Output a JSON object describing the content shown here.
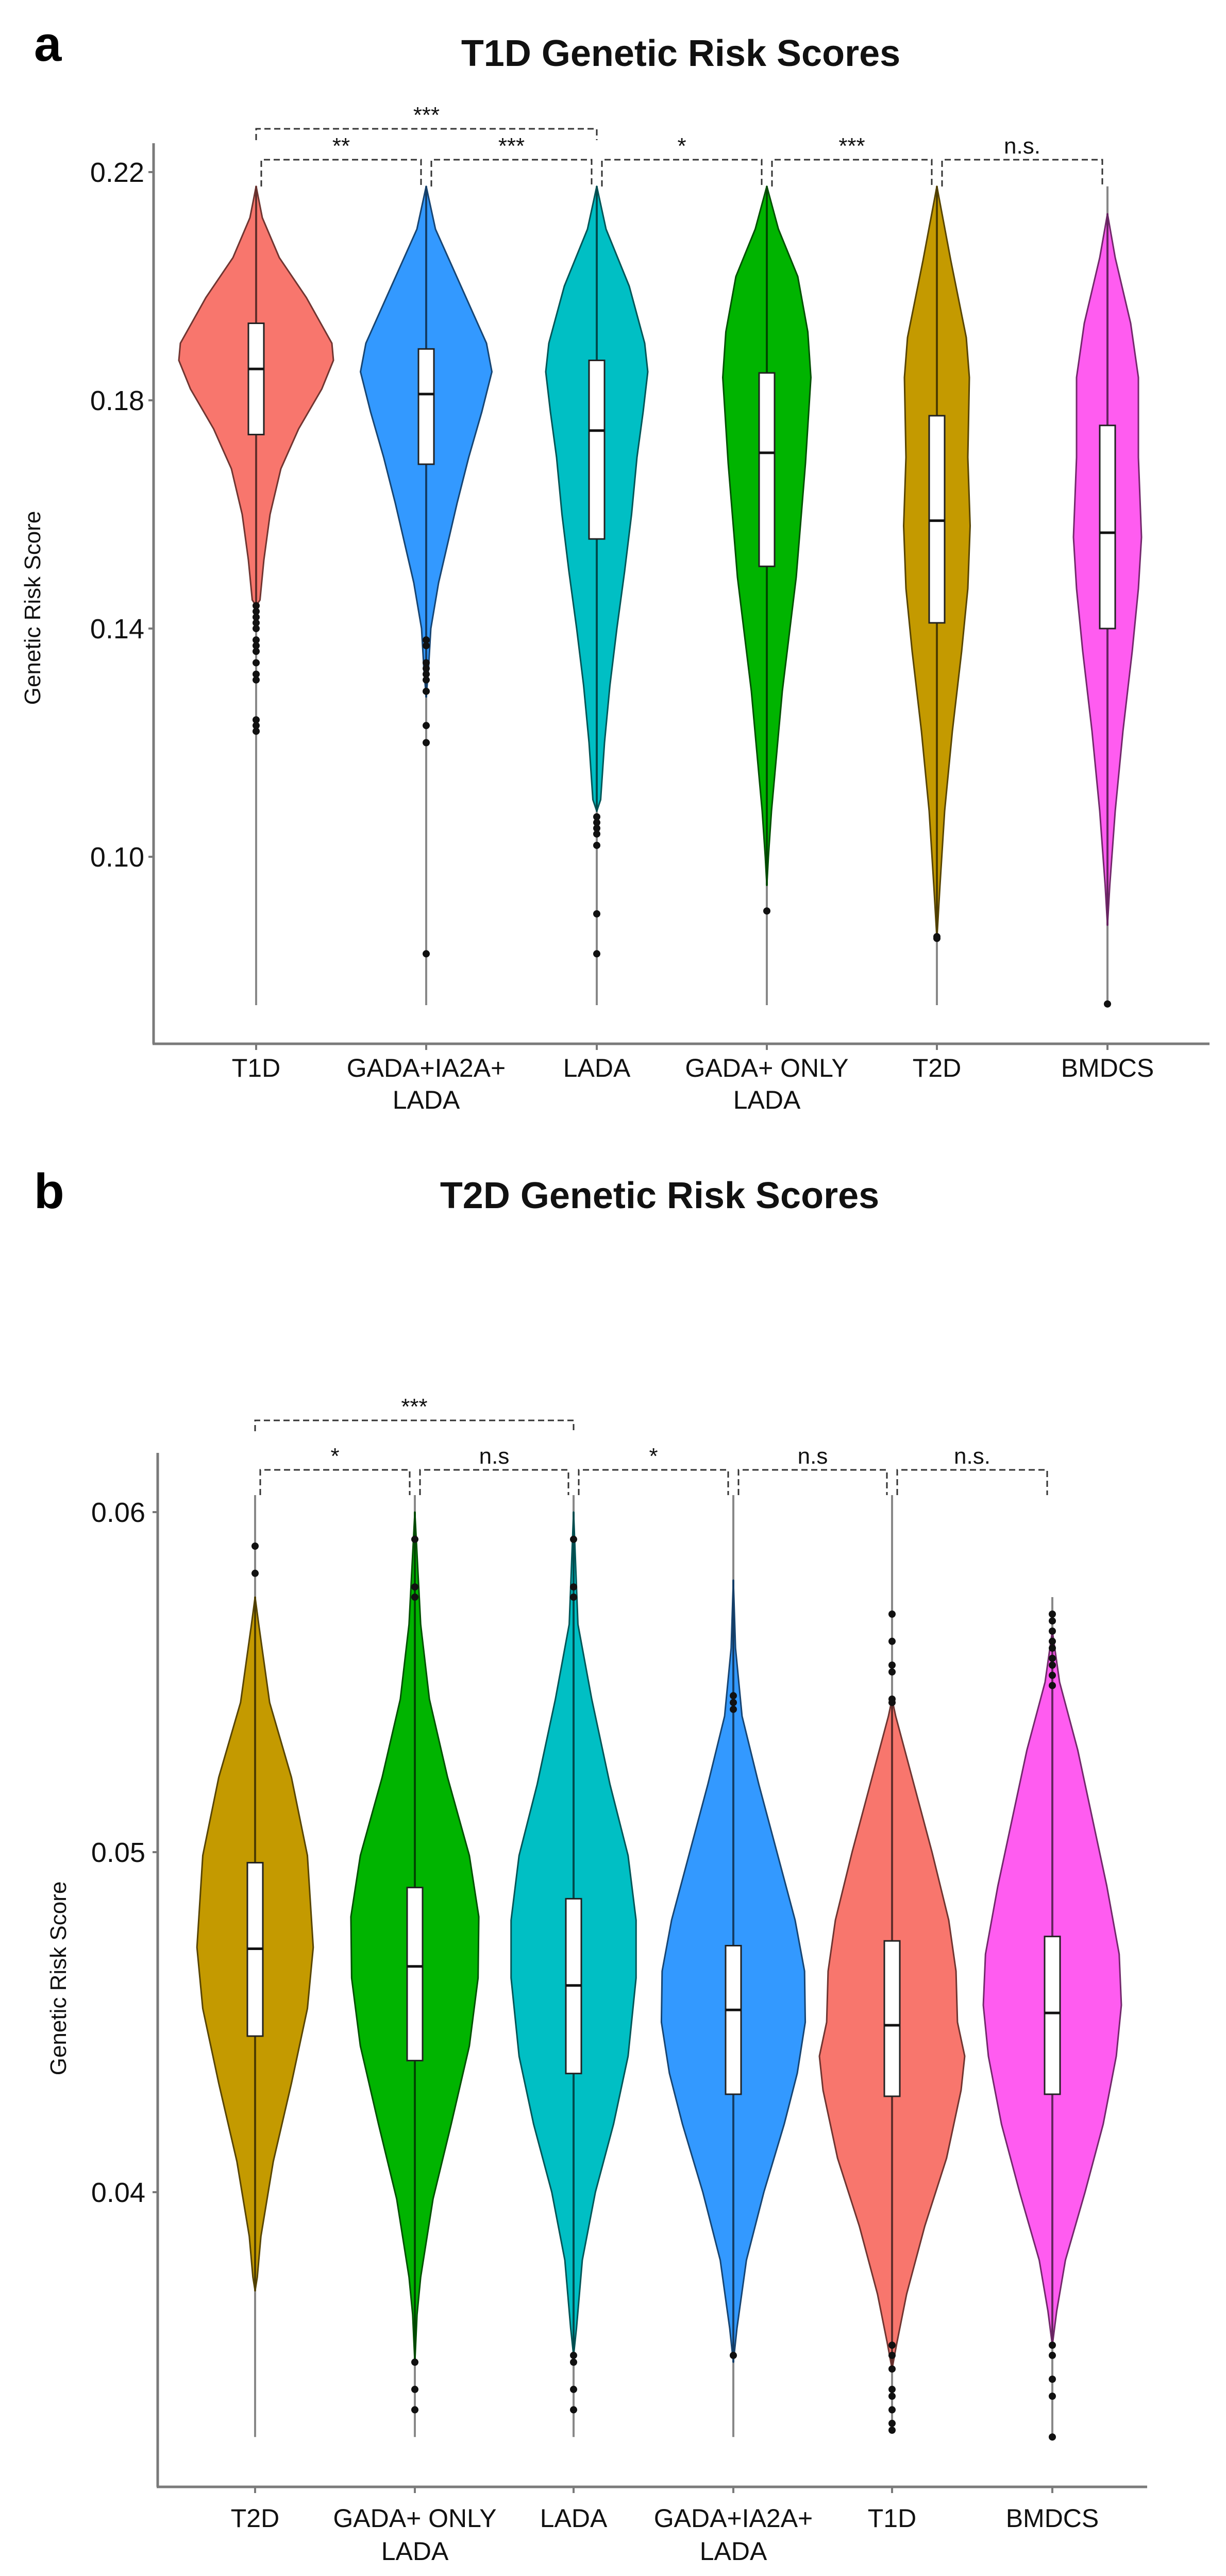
{
  "chart_data": [
    {
      "type": "violin",
      "panel": "a",
      "title": "T1D Genetic Risk Scores",
      "xlabel": "",
      "ylabel": "Genetic Risk Score",
      "ylim": [
        0.07,
        0.227
      ],
      "yticks": [
        0.1,
        0.14,
        0.18,
        0.22
      ],
      "ytick_labels": [
        "0.10",
        "0.14",
        "0.18",
        "0.22"
      ],
      "grid": false,
      "groups": [
        {
          "label": [
            "T1D"
          ],
          "color": "#F8766D",
          "q1": 0.174,
          "median": 0.1855,
          "q3": 0.1935,
          "whisker_low": 0.074,
          "whisker_high": 0.2175,
          "density": [
            [
              0.2175,
              0
            ],
            [
              0.212,
              0.08
            ],
            [
              0.205,
              0.3
            ],
            [
              0.198,
              0.65
            ],
            [
              0.19,
              0.98
            ],
            [
              0.187,
              1.0
            ],
            [
              0.182,
              0.85
            ],
            [
              0.175,
              0.55
            ],
            [
              0.168,
              0.32
            ],
            [
              0.16,
              0.18
            ],
            [
              0.152,
              0.1
            ],
            [
              0.145,
              0.05
            ],
            [
              0.144,
              0
            ]
          ],
          "outliers": [
            0.144,
            0.143,
            0.142,
            0.141,
            0.14,
            0.138,
            0.137,
            0.136,
            0.134,
            0.132,
            0.131,
            0.124,
            0.123,
            0.122
          ]
        },
        {
          "label": [
            "GADA+IA2A+",
            "LADA"
          ],
          "color": "#3399FF",
          "q1": 0.1688,
          "median": 0.1811,
          "q3": 0.189,
          "whisker_low": 0.074,
          "whisker_high": 0.2175,
          "density": [
            [
              0.2175,
              0
            ],
            [
              0.21,
              0.12
            ],
            [
              0.2,
              0.45
            ],
            [
              0.19,
              0.78
            ],
            [
              0.185,
              0.85
            ],
            [
              0.178,
              0.72
            ],
            [
              0.17,
              0.55
            ],
            [
              0.162,
              0.4
            ],
            [
              0.155,
              0.28
            ],
            [
              0.148,
              0.16
            ],
            [
              0.14,
              0.06
            ],
            [
              0.133,
              0.03
            ],
            [
              0.128,
              0
            ]
          ],
          "outliers": [
            0.138,
            0.137,
            0.134,
            0.133,
            0.132,
            0.131,
            0.129,
            0.123,
            0.12,
            0.083
          ]
        },
        {
          "label": [
            "LADA"
          ],
          "color": "#00BFC4",
          "q1": 0.1557,
          "median": 0.1747,
          "q3": 0.187,
          "whisker_low": 0.074,
          "whisker_high": 0.2175,
          "density": [
            [
              0.2175,
              0
            ],
            [
              0.21,
              0.12
            ],
            [
              0.2,
              0.42
            ],
            [
              0.19,
              0.62
            ],
            [
              0.185,
              0.66
            ],
            [
              0.178,
              0.6
            ],
            [
              0.17,
              0.52
            ],
            [
              0.16,
              0.45
            ],
            [
              0.15,
              0.36
            ],
            [
              0.14,
              0.26
            ],
            [
              0.13,
              0.17
            ],
            [
              0.12,
              0.1
            ],
            [
              0.11,
              0.05
            ],
            [
              0.108,
              0
            ]
          ],
          "outliers": [
            0.107,
            0.106,
            0.105,
            0.104,
            0.102,
            0.09,
            0.083
          ]
        },
        {
          "label": [
            "GADA+ ONLY",
            "LADA"
          ],
          "color": "#00B400",
          "q1": 0.1509,
          "median": 0.1708,
          "q3": 0.1848,
          "whisker_low": 0.074,
          "whisker_high": 0.2175,
          "density": [
            [
              0.2175,
              0
            ],
            [
              0.21,
              0.15
            ],
            [
              0.2017,
              0.4
            ],
            [
              0.192,
              0.53
            ],
            [
              0.184,
              0.57
            ],
            [
              0.169,
              0.5
            ],
            [
              0.149,
              0.38
            ],
            [
              0.129,
              0.2
            ],
            [
              0.108,
              0.06
            ],
            [
              0.1,
              0.02
            ],
            [
              0.095,
              0
            ]
          ],
          "outliers": [
            0.0905
          ]
        },
        {
          "label": [
            "T2D"
          ],
          "color": "#C49A00",
          "q1": 0.141,
          "median": 0.1589,
          "q3": 0.1773,
          "whisker_low": 0.074,
          "whisker_high": 0.2175,
          "density": [
            [
              0.2175,
              0
            ],
            [
              0.2045,
              0.18
            ],
            [
              0.191,
              0.38
            ],
            [
              0.184,
              0.42
            ],
            [
              0.17,
              0.4
            ],
            [
              0.158,
              0.43
            ],
            [
              0.147,
              0.4
            ],
            [
              0.136,
              0.32
            ],
            [
              0.122,
              0.2
            ],
            [
              0.108,
              0.1
            ],
            [
              0.095,
              0.04
            ],
            [
              0.0857,
              0
            ]
          ],
          "outliers": [
            0.0857,
            0.086
          ]
        },
        {
          "label": [
            "BMDCS"
          ],
          "color": "#FF5CF0",
          "q1": 0.14,
          "median": 0.1568,
          "q3": 0.1756,
          "whisker_low": 0.074,
          "whisker_high": 0.2175,
          "density": [
            [
              0.2127,
              0
            ],
            [
              0.205,
              0.1
            ],
            [
              0.1935,
              0.3
            ],
            [
              0.184,
              0.4
            ],
            [
              0.17,
              0.4
            ],
            [
              0.156,
              0.44
            ],
            [
              0.147,
              0.4
            ],
            [
              0.136,
              0.32
            ],
            [
              0.122,
              0.2
            ],
            [
              0.108,
              0.1
            ],
            [
              0.095,
              0.03
            ],
            [
              0.088,
              0
            ]
          ],
          "outliers": [
            0.0742
          ]
        }
      ],
      "comparisons": [
        {
          "from": 0,
          "to": 2,
          "label": "***",
          "level": 2
        },
        {
          "from": 0,
          "to": 1,
          "label": "**",
          "level": 1
        },
        {
          "from": 1,
          "to": 2,
          "label": "***",
          "level": 1
        },
        {
          "from": 2,
          "to": 3,
          "label": "*",
          "level": 1
        },
        {
          "from": 3,
          "to": 4,
          "label": "***",
          "level": 1
        },
        {
          "from": 4,
          "to": 5,
          "label": "n.s.",
          "level": 1
        }
      ]
    },
    {
      "type": "violin",
      "panel": "b",
      "title": "T2D Genetic Risk Scores",
      "xlabel": "",
      "ylabel": "Genetic Risk Score",
      "ylim": [
        0.0311,
        0.0618
      ],
      "yticks": [
        0.04,
        0.05,
        0.06
      ],
      "ytick_labels": [
        "0.04",
        "0.05",
        "0.06"
      ],
      "grid": false,
      "groups": [
        {
          "label": [
            "T2D"
          ],
          "color": "#C49A00",
          "q1": 0.04459,
          "median": 0.04716,
          "q3": 0.04969,
          "whisker_low": 0.0328,
          "whisker_high": 0.0605,
          "density": [
            [
              0.0575,
              0
            ],
            [
              0.0567,
              0.05
            ],
            [
              0.0544,
              0.2
            ],
            [
              0.0522,
              0.5
            ],
            [
              0.0499,
              0.72
            ],
            [
              0.0472,
              0.8
            ],
            [
              0.0454,
              0.72
            ],
            [
              0.0432,
              0.5
            ],
            [
              0.0409,
              0.25
            ],
            [
              0.0387,
              0.08
            ],
            [
              0.0375,
              0.03
            ],
            [
              0.0371,
              0
            ]
          ],
          "outliers": [
            0.059,
            0.0582
          ]
        },
        {
          "label": [
            "GADA+ ONLY",
            "LADA"
          ],
          "color": "#00B400",
          "q1": 0.04387,
          "median": 0.04664,
          "q3": 0.04896,
          "whisker_low": 0.0328,
          "whisker_high": 0.0605,
          "density": [
            [
              0.06,
              0
            ],
            [
              0.0567,
              0.08
            ],
            [
              0.0545,
              0.2
            ],
            [
              0.0522,
              0.45
            ],
            [
              0.0499,
              0.75
            ],
            [
              0.0481,
              0.88
            ],
            [
              0.0463,
              0.87
            ],
            [
              0.0443,
              0.75
            ],
            [
              0.042,
              0.5
            ],
            [
              0.0398,
              0.25
            ],
            [
              0.0375,
              0.08
            ],
            [
              0.0364,
              0.03
            ],
            [
              0.035,
              0
            ]
          ],
          "outliers": [
            0.0592,
            0.0578,
            0.0575,
            0.035,
            0.0342,
            0.0336
          ]
        },
        {
          "label": [
            "LADA"
          ],
          "color": "#00BFC4",
          "q1": 0.04349,
          "median": 0.04608,
          "q3": 0.04863,
          "whisker_low": 0.0328,
          "whisker_high": 0.0605,
          "density": [
            [
              0.06,
              0
            ],
            [
              0.0567,
              0.06
            ],
            [
              0.0545,
              0.25
            ],
            [
              0.052,
              0.5
            ],
            [
              0.0499,
              0.75
            ],
            [
              0.048,
              0.86
            ],
            [
              0.0463,
              0.86
            ],
            [
              0.044,
              0.75
            ],
            [
              0.042,
              0.55
            ],
            [
              0.04,
              0.3
            ],
            [
              0.038,
              0.12
            ],
            [
              0.036,
              0.04
            ],
            [
              0.0352,
              0
            ]
          ],
          "outliers": [
            0.0592,
            0.0578,
            0.0575,
            0.0352,
            0.035,
            0.0342,
            0.0336
          ]
        },
        {
          "label": [
            "GADA+IA2A+",
            "LADA"
          ],
          "color": "#3399FF",
          "q1": 0.04288,
          "median": 0.04536,
          "q3": 0.04725,
          "whisker_low": 0.0328,
          "whisker_high": 0.0605,
          "density": [
            [
              0.058,
              0
            ],
            [
              0.056,
              0.03
            ],
            [
              0.054,
              0.12
            ],
            [
              0.052,
              0.35
            ],
            [
              0.05,
              0.6
            ],
            [
              0.048,
              0.85
            ],
            [
              0.0465,
              0.98
            ],
            [
              0.045,
              0.99
            ],
            [
              0.0435,
              0.88
            ],
            [
              0.042,
              0.7
            ],
            [
              0.04,
              0.42
            ],
            [
              0.038,
              0.18
            ],
            [
              0.036,
              0.05
            ],
            [
              0.035,
              0
            ]
          ],
          "outliers": [
            0.0546,
            0.0544,
            0.0542,
            0.0352
          ]
        },
        {
          "label": [
            "T1D"
          ],
          "color": "#F8766D",
          "q1": 0.04282,
          "median": 0.04491,
          "q3": 0.04739,
          "whisker_low": 0.033,
          "whisker_high": 0.0605,
          "density": [
            [
              0.0545,
              0
            ],
            [
              0.054,
              0.05
            ],
            [
              0.052,
              0.3
            ],
            [
              0.05,
              0.55
            ],
            [
              0.048,
              0.78
            ],
            [
              0.0465,
              0.88
            ],
            [
              0.045,
              0.9
            ],
            [
              0.044,
              1.0
            ],
            [
              0.043,
              0.95
            ],
            [
              0.041,
              0.75
            ],
            [
              0.039,
              0.45
            ],
            [
              0.037,
              0.2
            ],
            [
              0.0355,
              0.06
            ],
            [
              0.0348,
              0
            ]
          ],
          "outliers": [
            0.057,
            0.0562,
            0.0555,
            0.0553,
            0.0545,
            0.0544,
            0.0355,
            0.0352,
            0.0348,
            0.0342,
            0.034,
            0.0336,
            0.0332,
            0.033
          ]
        },
        {
          "label": [
            "BMDCS"
          ],
          "color": "#FF5CF0",
          "q1": 0.04288,
          "median": 0.04527,
          "q3": 0.04752,
          "whisker_low": 0.0328,
          "whisker_high": 0.0575,
          "density": [
            [
              0.0565,
              0
            ],
            [
              0.055,
              0.1
            ],
            [
              0.053,
              0.35
            ],
            [
              0.051,
              0.55
            ],
            [
              0.049,
              0.75
            ],
            [
              0.047,
              0.92
            ],
            [
              0.0455,
              0.95
            ],
            [
              0.044,
              0.88
            ],
            [
              0.042,
              0.7
            ],
            [
              0.04,
              0.45
            ],
            [
              0.038,
              0.18
            ],
            [
              0.0365,
              0.06
            ],
            [
              0.0355,
              0
            ]
          ],
          "outliers": [
            0.057,
            0.0568,
            0.0565,
            0.0562,
            0.056,
            0.0557,
            0.0555,
            0.0552,
            0.0549,
            0.0355,
            0.0352,
            0.0345,
            0.034,
            0.0328
          ]
        }
      ],
      "comparisons": [
        {
          "from": 0,
          "to": 2,
          "label": "***",
          "level": 2
        },
        {
          "from": 0,
          "to": 1,
          "label": "*",
          "level": 1
        },
        {
          "from": 1,
          "to": 2,
          "label": "n.s",
          "level": 1
        },
        {
          "from": 2,
          "to": 3,
          "label": "*",
          "level": 1
        },
        {
          "from": 3,
          "to": 4,
          "label": "n.s",
          "level": 1
        },
        {
          "from": 4,
          "to": 5,
          "label": "n.s.",
          "level": 1
        }
      ]
    }
  ]
}
